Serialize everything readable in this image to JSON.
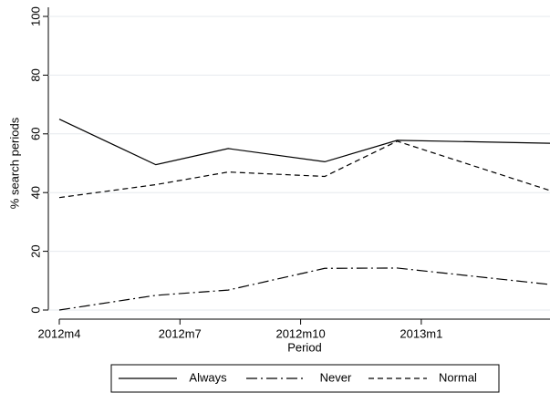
{
  "chart_data": {
    "type": "line",
    "x_label": "Period",
    "y_label": "% search periods",
    "x": [
      627,
      629.4,
      631.2,
      633.6,
      635.4,
      639.2
    ],
    "series": [
      {
        "name": "Always",
        "color": "#000000",
        "dash": "solid",
        "values": [
          65,
          49.5,
          55,
          50.5,
          57.8,
          56.8
        ]
      },
      {
        "name": "Never",
        "color": "#000000",
        "dash": "dash-dot",
        "values": [
          0,
          5,
          6.8,
          14.2,
          14.3,
          8.7
        ]
      },
      {
        "name": "Normal",
        "color": "#000000",
        "dash": "dash",
        "values": [
          38.3,
          42.7,
          47,
          45.5,
          57.5,
          40.7
        ]
      }
    ],
    "xlim": [
      627,
      639.2
    ],
    "xticks": [
      {
        "value": 627,
        "label": "2012m4"
      },
      {
        "value": 630,
        "label": "2012m7"
      },
      {
        "value": 633,
        "label": "2012m10"
      },
      {
        "value": 636,
        "label": "2013m1"
      }
    ],
    "ylim": [
      0,
      100
    ],
    "yticks": [
      0,
      20,
      40,
      60,
      80,
      100
    ],
    "grid": true,
    "legend": "bottom"
  }
}
